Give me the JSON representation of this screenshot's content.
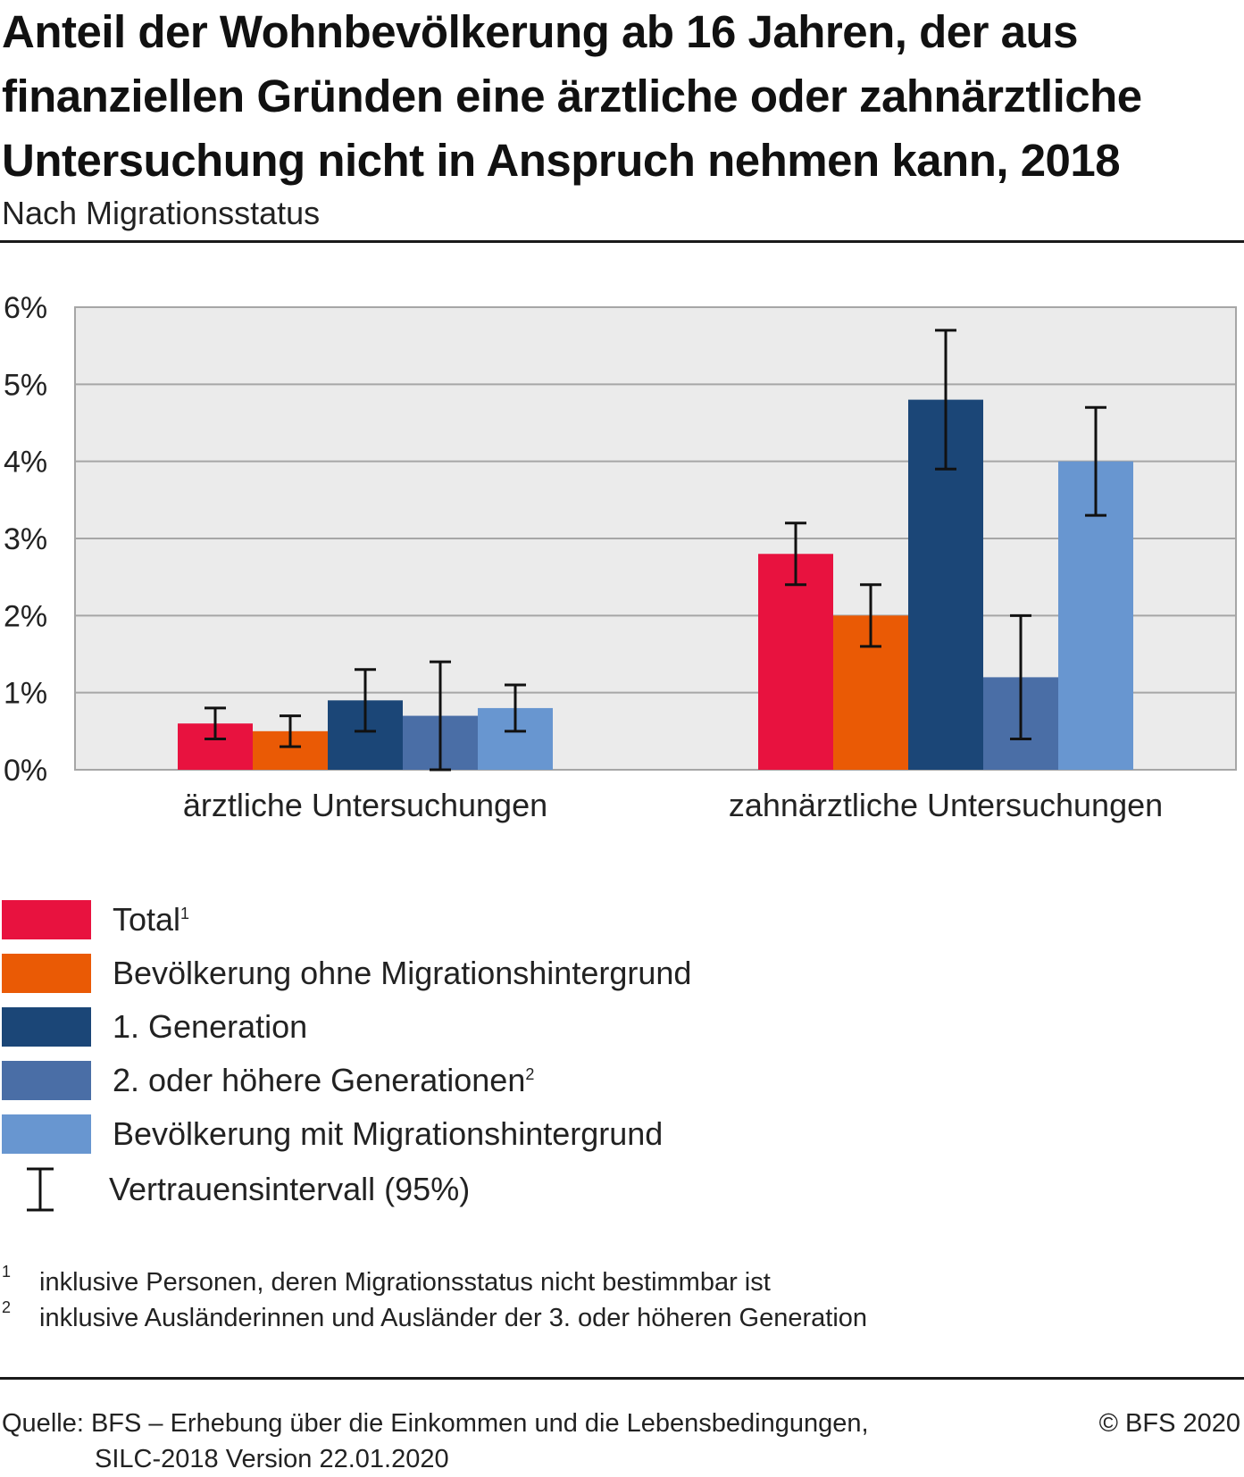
{
  "title": "Anteil der Wohnbevölkerung ab 16 Jahren, der aus finanziellen Gründen eine ärztliche oder zahnärztliche Untersuchung nicht in Anspruch nehmen kann, 2018",
  "subtitle": "Nach Migrationsstatus",
  "chart_data": {
    "type": "bar",
    "categories": [
      "ärztliche Untersuchungen",
      "zahnärztliche Untersuchungen"
    ],
    "series": [
      {
        "name": "Total",
        "footnote": "1",
        "color": "#e8123f",
        "values": [
          0.6,
          2.8
        ],
        "ci_low": [
          0.4,
          2.4
        ],
        "ci_high": [
          0.8,
          3.2
        ]
      },
      {
        "name": "Bevölkerung ohne Migrationshintergrund",
        "color": "#ea5a05",
        "values": [
          0.5,
          2.0
        ],
        "ci_low": [
          0.3,
          1.6
        ],
        "ci_high": [
          0.7,
          2.4
        ]
      },
      {
        "name": "1. Generation",
        "color": "#1b4677",
        "values": [
          0.9,
          4.8
        ],
        "ci_low": [
          0.5,
          3.9
        ],
        "ci_high": [
          1.3,
          5.7
        ]
      },
      {
        "name": "2. oder höhere Generationen",
        "footnote": "2",
        "color": "#4a6ea6",
        "values": [
          0.7,
          1.2
        ],
        "ci_low": [
          0.0,
          0.4
        ],
        "ci_high": [
          1.4,
          2.0
        ]
      },
      {
        "name": "Bevölkerung mit Migrationshintergrund",
        "color": "#6896d0",
        "values": [
          0.8,
          4.0
        ],
        "ci_low": [
          0.5,
          3.3
        ],
        "ci_high": [
          1.1,
          4.7
        ]
      }
    ],
    "y_ticks": [
      "0%",
      "1%",
      "2%",
      "3%",
      "4%",
      "5%",
      "6%"
    ],
    "ylim": [
      0,
      6
    ],
    "unit": "%",
    "grid": true,
    "error_bars": "Vertrauensintervall (95%)",
    "legend_position": "bottom"
  },
  "legend": {
    "items": [
      {
        "label": "Total",
        "sup": "1"
      },
      {
        "label": "Bevölkerung ohne Migrationshintergrund",
        "sup": ""
      },
      {
        "label": "1. Generation",
        "sup": ""
      },
      {
        "label": "2. oder höhere Generationen",
        "sup": "2"
      },
      {
        "label": "Bevölkerung mit Migrationshintergrund",
        "sup": ""
      }
    ],
    "ci_label": "Vertrauensintervall (95%)"
  },
  "footnotes": [
    {
      "num": "1",
      "text": "inklusive Personen, deren Migrationsstatus nicht bestimmbar ist"
    },
    {
      "num": "2",
      "text": "inklusive Ausländerinnen und Ausländer der 3. oder höheren Generation"
    }
  ],
  "source": {
    "line1": "Quelle: BFS – Erhebung über die Einkommen und die Lebensbedingungen,",
    "line2": "SILC-2018 Version 22.01.2020"
  },
  "copyright": "© BFS 2020"
}
